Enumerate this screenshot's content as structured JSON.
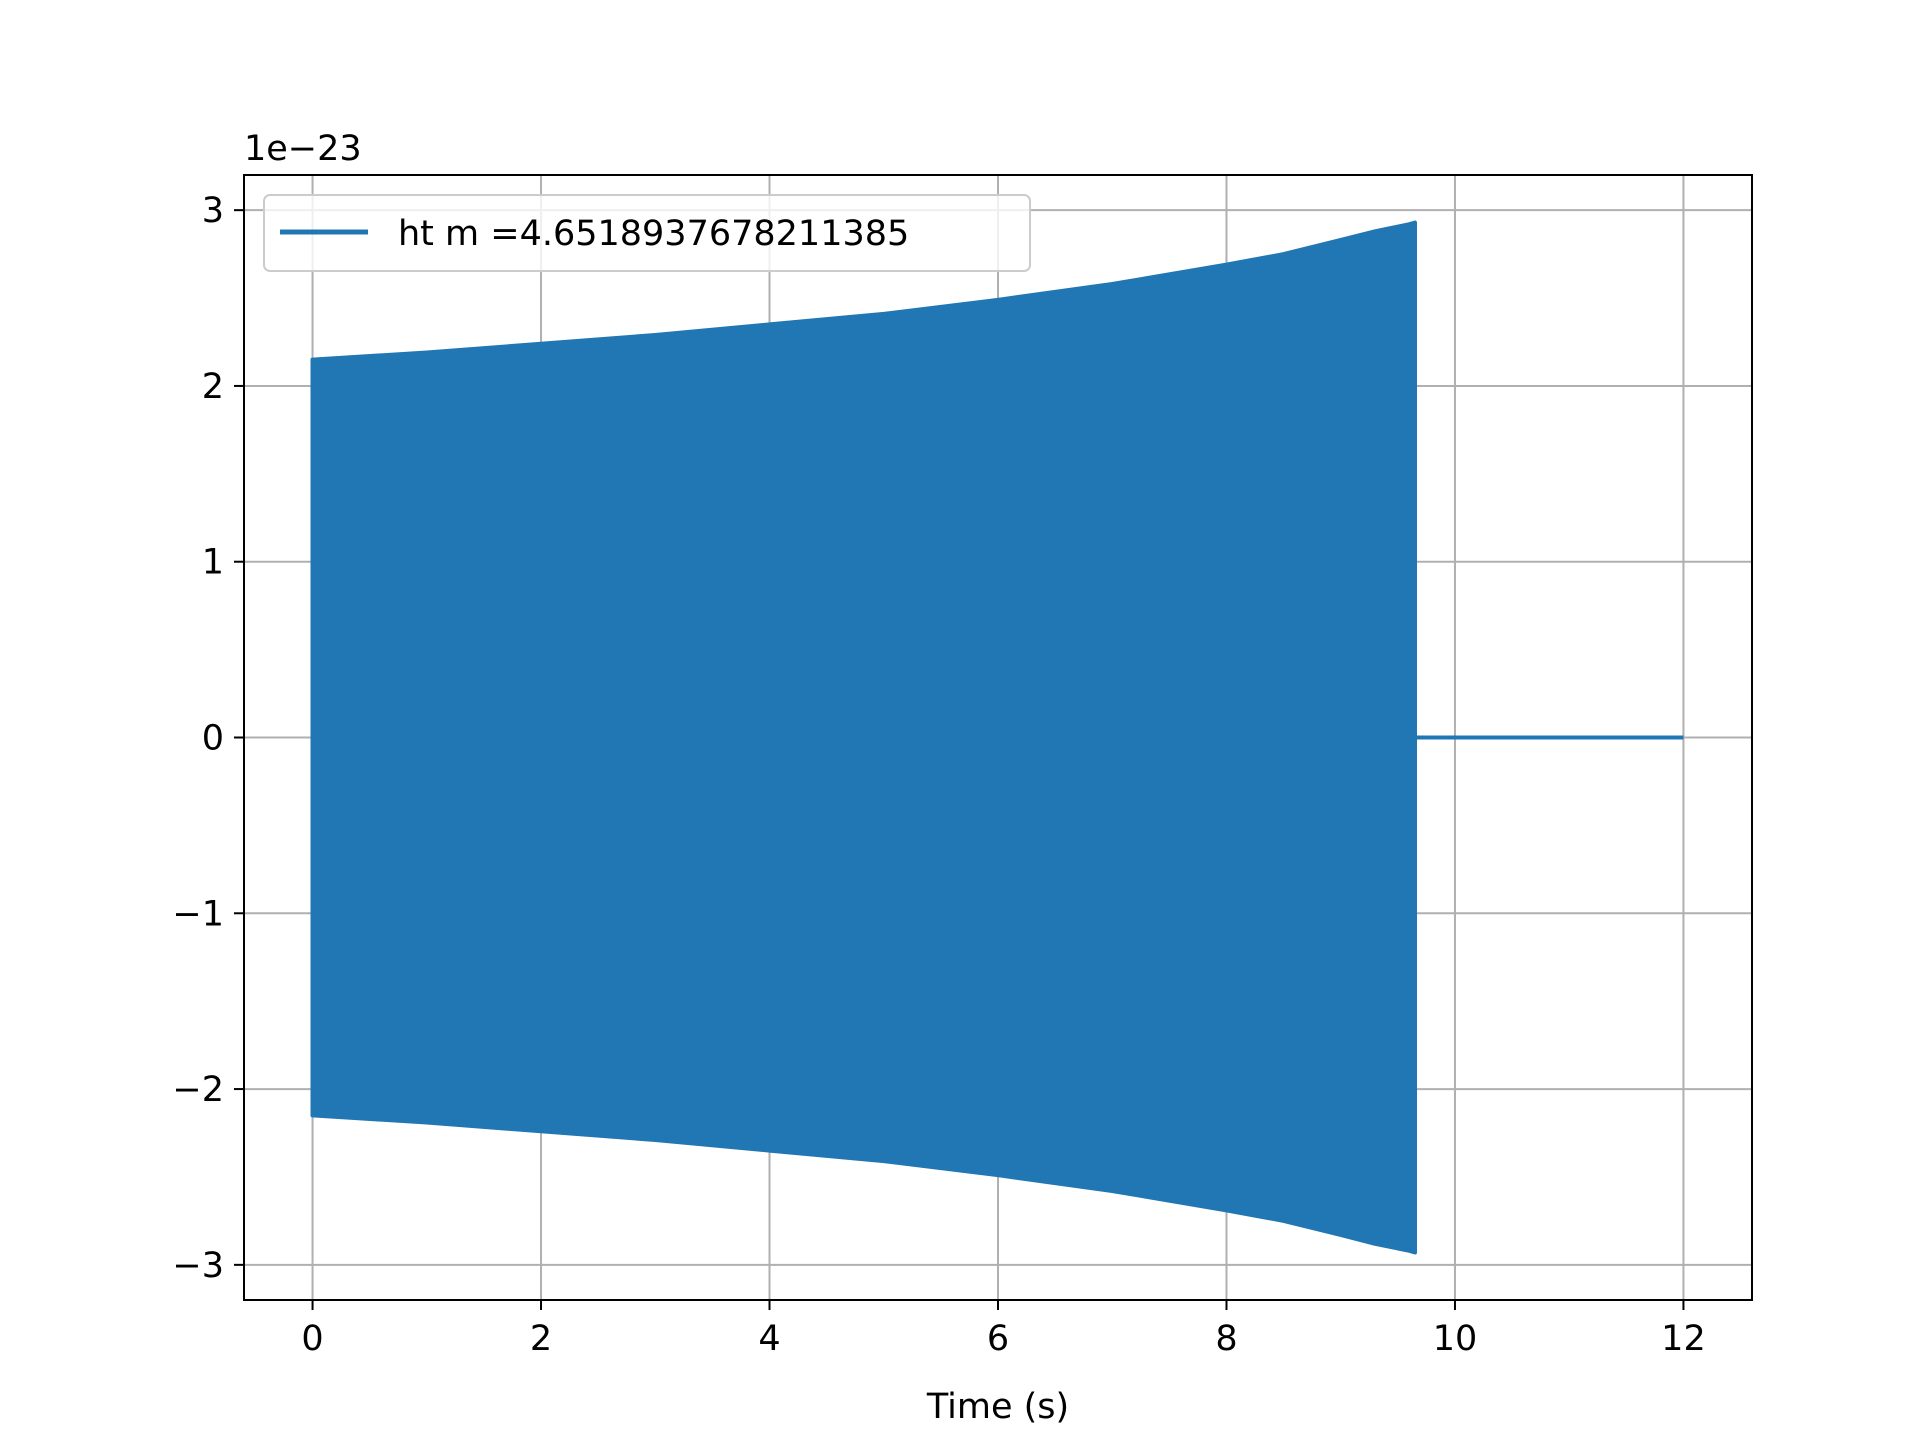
{
  "chart_data": {
    "type": "line",
    "title": "",
    "xlabel": "Time (s)",
    "ylabel": "",
    "y_offset_label": "1e−23",
    "xlim": [
      -0.6,
      12.6
    ],
    "ylim": [
      -3.2,
      3.2
    ],
    "x_ticks": [
      0,
      2,
      4,
      6,
      8,
      10,
      12
    ],
    "x_tick_labels": [
      "0",
      "2",
      "4",
      "6",
      "8",
      "10",
      "12"
    ],
    "y_ticks": [
      -3,
      -2,
      -1,
      0,
      1,
      2,
      3
    ],
    "y_tick_labels": [
      "−3",
      "−2",
      "−1",
      "0",
      "1",
      "2",
      "3"
    ],
    "grid": true,
    "legend_position": "top-left",
    "color": "#2077b4",
    "series": [
      {
        "name": "ht m =4.6518937678211385",
        "envelope": {
          "x": [
            0,
            1,
            2,
            3,
            4,
            5,
            6,
            7,
            8,
            8.5,
            9,
            9.3,
            9.6,
            9.65
          ],
          "upper": [
            2.15,
            2.19,
            2.24,
            2.29,
            2.35,
            2.41,
            2.49,
            2.58,
            2.69,
            2.75,
            2.83,
            2.88,
            2.92,
            2.93
          ],
          "lower": [
            -2.15,
            -2.19,
            -2.24,
            -2.29,
            -2.35,
            -2.41,
            -2.49,
            -2.58,
            -2.69,
            -2.75,
            -2.83,
            -2.88,
            -2.92,
            -2.93
          ]
        },
        "zero_segment": {
          "x": [
            9.65,
            12
          ],
          "y": [
            0,
            0
          ]
        }
      }
    ]
  }
}
